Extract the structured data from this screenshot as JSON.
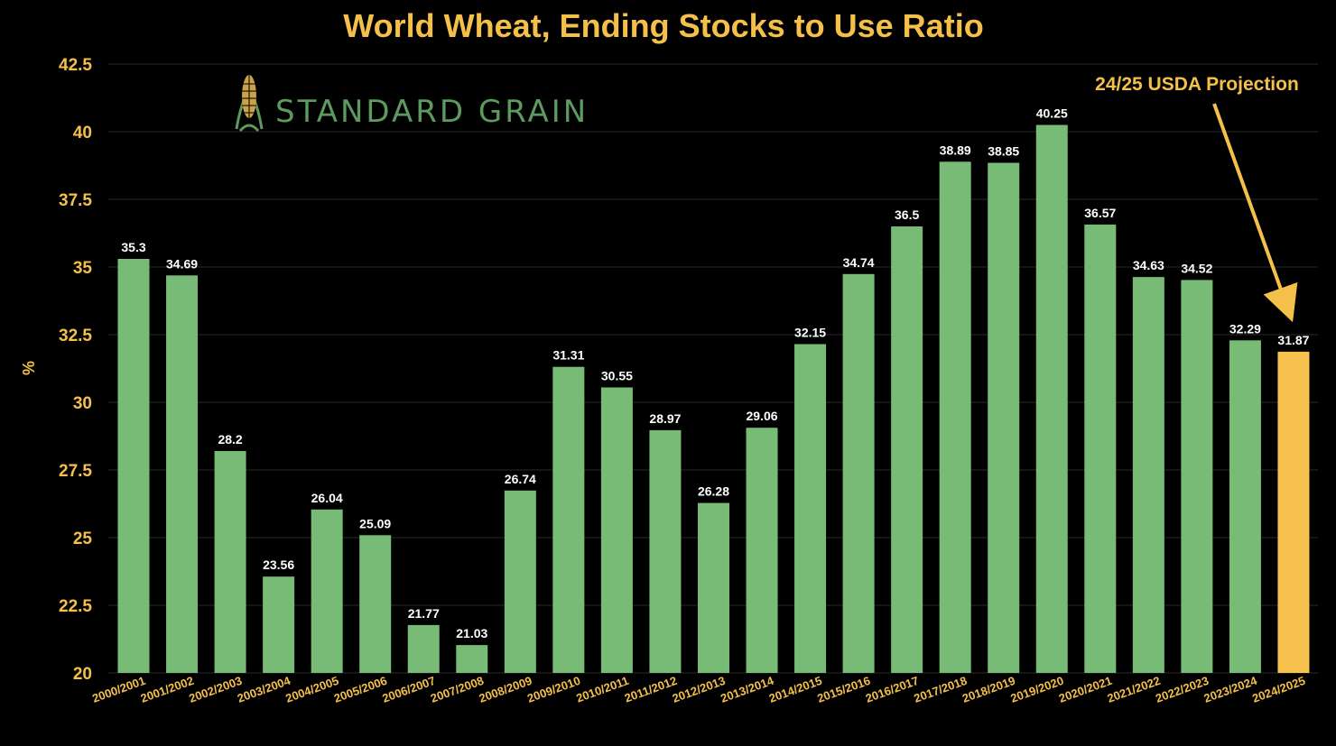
{
  "colors": {
    "background": "#000000",
    "bar": "#77bb77",
    "highlight_bar": "#f7c34e",
    "accent": "#f5c04a",
    "grid": "#2a2a2a",
    "data_label": "#ffffff",
    "logo": "#5e9a5f"
  },
  "logo": {
    "text": "STANDARD GRAIN",
    "icon": "corn-icon"
  },
  "chart_data": {
    "type": "bar",
    "title": "World Wheat, Ending Stocks to Use Ratio",
    "xlabel": "",
    "ylabel": "%",
    "ylim": [
      20,
      42.5
    ],
    "yticks": [
      "20",
      "22.5",
      "25",
      "27.5",
      "30",
      "32.5",
      "35",
      "37.5",
      "40",
      "42.5"
    ],
    "grid": true,
    "categories": [
      "2000/2001",
      "2001/2002",
      "2002/2003",
      "2003/2004",
      "2004/2005",
      "2005/2006",
      "2006/2007",
      "2007/2008",
      "2008/2009",
      "2009/2010",
      "2010/2011",
      "2011/2012",
      "2012/2013",
      "2013/2014",
      "2014/2015",
      "2015/2016",
      "2016/2017",
      "2017/2018",
      "2018/2019",
      "2019/2020",
      "2020/2021",
      "2021/2022",
      "2022/2023",
      "2023/2024",
      "2024/2025"
    ],
    "values": [
      35.3,
      34.69,
      28.2,
      23.56,
      26.04,
      25.09,
      21.77,
      21.03,
      26.74,
      31.31,
      30.55,
      28.97,
      26.28,
      29.06,
      32.15,
      34.74,
      36.5,
      38.89,
      38.85,
      40.25,
      36.57,
      34.63,
      34.52,
      32.29,
      31.87
    ],
    "value_labels": [
      "35.3",
      "34.69",
      "28.2",
      "23.56",
      "26.04",
      "25.09",
      "21.77",
      "21.03",
      "26.74",
      "31.31",
      "30.55",
      "28.97",
      "26.28",
      "29.06",
      "32.15",
      "34.74",
      "36.5",
      "38.89",
      "38.85",
      "40.25",
      "36.57",
      "34.63",
      "34.52",
      "32.29",
      "31.87"
    ],
    "highlight_index": 24,
    "annotation": {
      "text": "24/25 USDA Projection",
      "target": "2024/2025"
    }
  }
}
